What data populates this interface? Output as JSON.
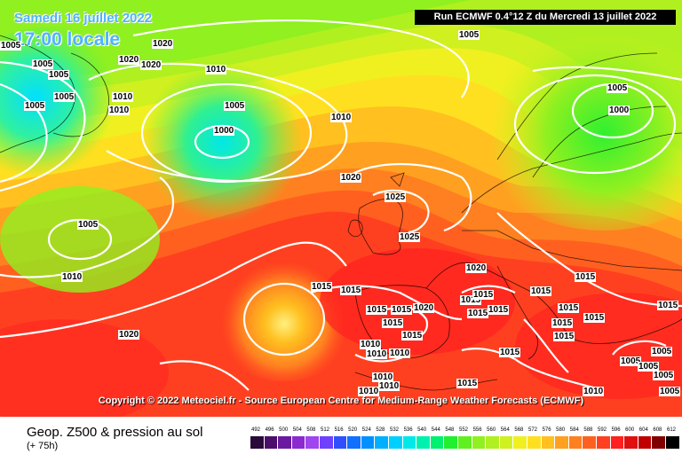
{
  "header": {
    "date_line": "Samedi 16 juillet 2022",
    "time_line": "17:00 locale",
    "run_info": "Run ECMWF 0.4°12 Z du Mercredi 13 juillet 2022"
  },
  "copyright": "Copyright © 2022 Meteociel.fr - Source European Centre for Medium-Range Weather Forecasts (ECMWF)",
  "footer": {
    "caption": "Geop. Z500 & pression au sol",
    "subcaption": "(+ 75h)"
  },
  "scale": {
    "values": [
      "492",
      "496",
      "500",
      "504",
      "508",
      "512",
      "516",
      "520",
      "524",
      "528",
      "532",
      "536",
      "540",
      "544",
      "548",
      "552",
      "556",
      "560",
      "564",
      "568",
      "572",
      "576",
      "580",
      "584",
      "588",
      "592",
      "596",
      "600",
      "604",
      "608",
      "612"
    ],
    "colors": [
      "#2a0a3a",
      "#4b0f6b",
      "#6a1aa0",
      "#8a2ad0",
      "#a045f0",
      "#7040ff",
      "#3050ff",
      "#1070ff",
      "#0090ff",
      "#00b0ff",
      "#00d0ff",
      "#00e8e8",
      "#00f0b0",
      "#00f070",
      "#20f030",
      "#60f020",
      "#90f020",
      "#b0f020",
      "#d0f020",
      "#f0f020",
      "#ffe020",
      "#ffc020",
      "#ffa020",
      "#ff8020",
      "#ff6020",
      "#ff4020",
      "#ff2020",
      "#e01010",
      "#c00000",
      "#800000",
      "#000000"
    ]
  },
  "isobars": [
    {
      "text": "1005",
      "id": "i1"
    },
    {
      "text": "1020",
      "id": "i2"
    },
    {
      "text": "1020",
      "id": "i3"
    },
    {
      "text": "1020",
      "id": "i4"
    },
    {
      "text": "1005",
      "id": "i5"
    },
    {
      "text": "1005",
      "id": "i6"
    },
    {
      "text": "1005",
      "id": "i7"
    },
    {
      "text": "1005",
      "id": "i8"
    },
    {
      "text": "1010",
      "id": "i9"
    },
    {
      "text": "1010",
      "id": "i10"
    },
    {
      "text": "1010",
      "id": "i11"
    },
    {
      "text": "1005",
      "id": "i12"
    },
    {
      "text": "1000",
      "id": "i13"
    },
    {
      "text": "1010",
      "id": "i14"
    },
    {
      "text": "1005",
      "id": "i15"
    },
    {
      "text": "1005",
      "id": "i16"
    },
    {
      "text": "1000",
      "id": "i17"
    },
    {
      "text": "1020",
      "id": "i18"
    },
    {
      "text": "1025",
      "id": "i19"
    },
    {
      "text": "1025",
      "id": "i20"
    },
    {
      "text": "1005",
      "id": "i21"
    },
    {
      "text": "1010",
      "id": "i22"
    },
    {
      "text": "1020",
      "id": "i23"
    },
    {
      "text": "1015",
      "id": "i24"
    },
    {
      "text": "1015",
      "id": "i25"
    },
    {
      "text": "1015",
      "id": "i26"
    },
    {
      "text": "1015",
      "id": "i27"
    },
    {
      "text": "1020",
      "id": "i28"
    },
    {
      "text": "1015",
      "id": "i29"
    },
    {
      "text": "1015",
      "id": "i30"
    },
    {
      "text": "1015",
      "id": "i31"
    },
    {
      "text": "1015",
      "id": "i32"
    },
    {
      "text": "1015",
      "id": "i33"
    },
    {
      "text": "1015",
      "id": "i34"
    },
    {
      "text": "1015",
      "id": "i35"
    },
    {
      "text": "1015",
      "id": "i36"
    },
    {
      "text": "1015",
      "id": "i37"
    },
    {
      "text": "1015",
      "id": "i38"
    },
    {
      "text": "1015",
      "id": "i39"
    },
    {
      "text": "1015",
      "id": "i40"
    },
    {
      "text": "1020",
      "id": "i41"
    },
    {
      "text": "1010",
      "id": "i42"
    },
    {
      "text": "1010",
      "id": "i43"
    },
    {
      "text": "1010",
      "id": "i44"
    },
    {
      "text": "1015",
      "id": "i45"
    },
    {
      "text": "1015",
      "id": "i46"
    },
    {
      "text": "1005",
      "id": "i47"
    },
    {
      "text": "1005",
      "id": "i48"
    },
    {
      "text": "1010",
      "id": "i49"
    },
    {
      "text": "1010",
      "id": "i50"
    },
    {
      "text": "1010",
      "id": "i51"
    },
    {
      "text": "1015",
      "id": "i52"
    },
    {
      "text": "1010",
      "id": "i53"
    },
    {
      "text": "1005",
      "id": "i54"
    },
    {
      "text": "1005",
      "id": "i55"
    },
    {
      "text": "1005",
      "id": "i56"
    }
  ]
}
